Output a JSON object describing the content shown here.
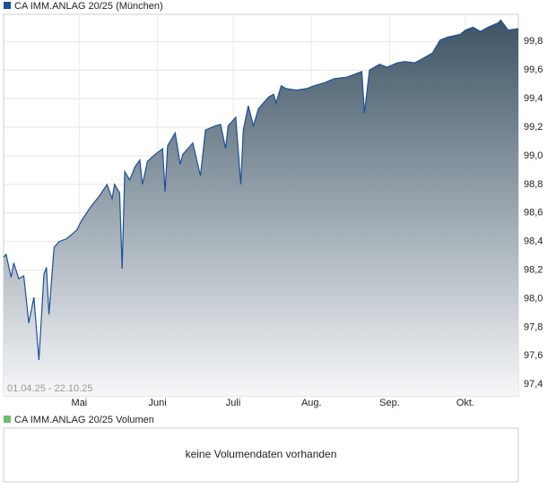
{
  "chart_data": {
    "type": "area",
    "series": [
      {
        "name": "CA IMM.ANLAG 20/25 (München)",
        "color": "#1c4f9c",
        "values": [
          98.29,
          98.31,
          98.15,
          98.25,
          98.14,
          98.16,
          97.83,
          98.01,
          97.57,
          98.17,
          98.22,
          97.89,
          98.36,
          98.4,
          98.42,
          98.48,
          98.55,
          98.63,
          98.72,
          98.8,
          98.7,
          98.8,
          98.74,
          98.21,
          98.89,
          98.83,
          98.92,
          98.97,
          98.8,
          98.96,
          99.01,
          99.05,
          98.75,
          99.07,
          99.16,
          98.94,
          99.01,
          99.09,
          98.86,
          99.18,
          99.21,
          99.22,
          99.05,
          99.21,
          99.27,
          98.8,
          99.18,
          99.35,
          99.21,
          99.33,
          99.41,
          99.43,
          99.37,
          99.49,
          99.47,
          99.46,
          99.47,
          99.49,
          99.51,
          99.54,
          99.55,
          99.57,
          99.59,
          99.3,
          99.6,
          99.64,
          99.62,
          99.65,
          99.66,
          99.65,
          99.68,
          99.72,
          99.81,
          99.83,
          99.85,
          99.88,
          99.9,
          99.87,
          99.9,
          99.93,
          99.95,
          99.88,
          99.89
        ]
      }
    ],
    "x": [
      0,
      1,
      3,
      4,
      6,
      8,
      10,
      12,
      14,
      16,
      17,
      18,
      20,
      22,
      25,
      29,
      31,
      34,
      38,
      41,
      43,
      44,
      46,
      47,
      48,
      50,
      52,
      54,
      55,
      57,
      60,
      63,
      64,
      65,
      68,
      70,
      71,
      75,
      78,
      80,
      84,
      86,
      88,
      89,
      92,
      94,
      95,
      97,
      99,
      101,
      105,
      107,
      108,
      110,
      112,
      116,
      120,
      123,
      127,
      131,
      136,
      139,
      142,
      143,
      145,
      149,
      152,
      156,
      159,
      163,
      166,
      170,
      173,
      176,
      181,
      183,
      186,
      189,
      192,
      196,
      197,
      200,
      204
    ],
    "xlim": [
      0,
      204
    ],
    "xticks": [
      {
        "value": 30,
        "label": "Mai"
      },
      {
        "value": 61,
        "label": "Juni"
      },
      {
        "value": 91,
        "label": "Juli"
      },
      {
        "value": 122,
        "label": "Aug."
      },
      {
        "value": 153,
        "label": "Sep."
      },
      {
        "value": 183,
        "label": "Okt."
      }
    ],
    "ylim": [
      97.32,
      99.99
    ],
    "yticks": [
      {
        "value": 97.4,
        "label": "97,4"
      },
      {
        "value": 97.6,
        "label": "97,6"
      },
      {
        "value": 97.8,
        "label": "97,8"
      },
      {
        "value": 98.0,
        "label": "98,0"
      },
      {
        "value": 98.2,
        "label": "98,2"
      },
      {
        "value": 98.4,
        "label": "98,4"
      },
      {
        "value": 98.6,
        "label": "98,6"
      },
      {
        "value": 98.8,
        "label": "98,8"
      },
      {
        "value": 99.0,
        "label": "99,0"
      },
      {
        "value": 99.2,
        "label": "99,2"
      },
      {
        "value": 99.4,
        "label": "99,4"
      },
      {
        "value": 99.6,
        "label": "99,6"
      },
      {
        "value": 99.8,
        "label": "99,8"
      }
    ],
    "grid": true,
    "date_range": "01.04.25 - 22.10.25"
  },
  "volume": {
    "legend": "CA IMM.ANLAG 20/25 Volumen",
    "color": "#6cbf6c",
    "message": "keine Volumendaten vorhanden"
  }
}
